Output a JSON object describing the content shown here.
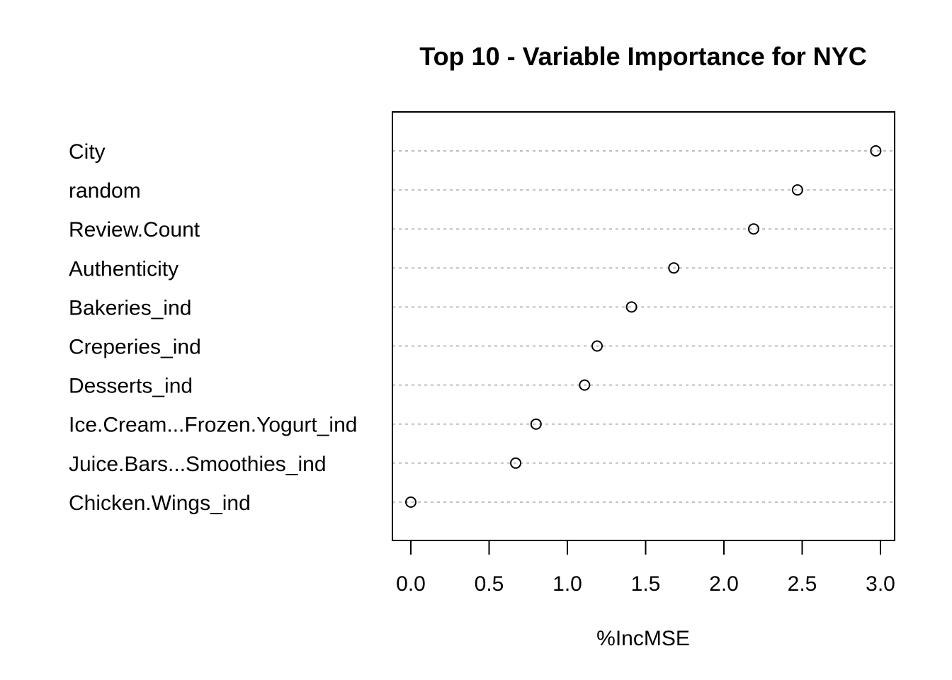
{
  "chart_data": {
    "type": "scatter",
    "title": "Top 10 - Variable Importance for NYC",
    "xlabel": "%IncMSE",
    "ylabel": "",
    "xlim": [
      -0.12,
      3.09
    ],
    "xticks": [
      0.0,
      0.5,
      1.0,
      1.5,
      2.0,
      2.5,
      3.0
    ],
    "xtick_labels": [
      "0.0",
      "0.5",
      "1.0",
      "1.5",
      "2.0",
      "2.5",
      "3.0"
    ],
    "grid": "dotted horizontal lines per category",
    "legend": "none",
    "categories": [
      "City",
      "random",
      "Review.Count",
      "Authenticity",
      "Bakeries_ind",
      "Creperies_ind",
      "Desserts_ind",
      "Ice.Cream...Frozen.Yogurt_ind",
      "Juice.Bars...Smoothies_ind",
      "Chicken.Wings_ind"
    ],
    "values": [
      2.97,
      2.47,
      2.19,
      1.68,
      1.41,
      1.19,
      1.11,
      0.8,
      0.67,
      0.0
    ],
    "colors": {
      "point_stroke": "#000000",
      "grid": "#bdbdbd"
    }
  }
}
